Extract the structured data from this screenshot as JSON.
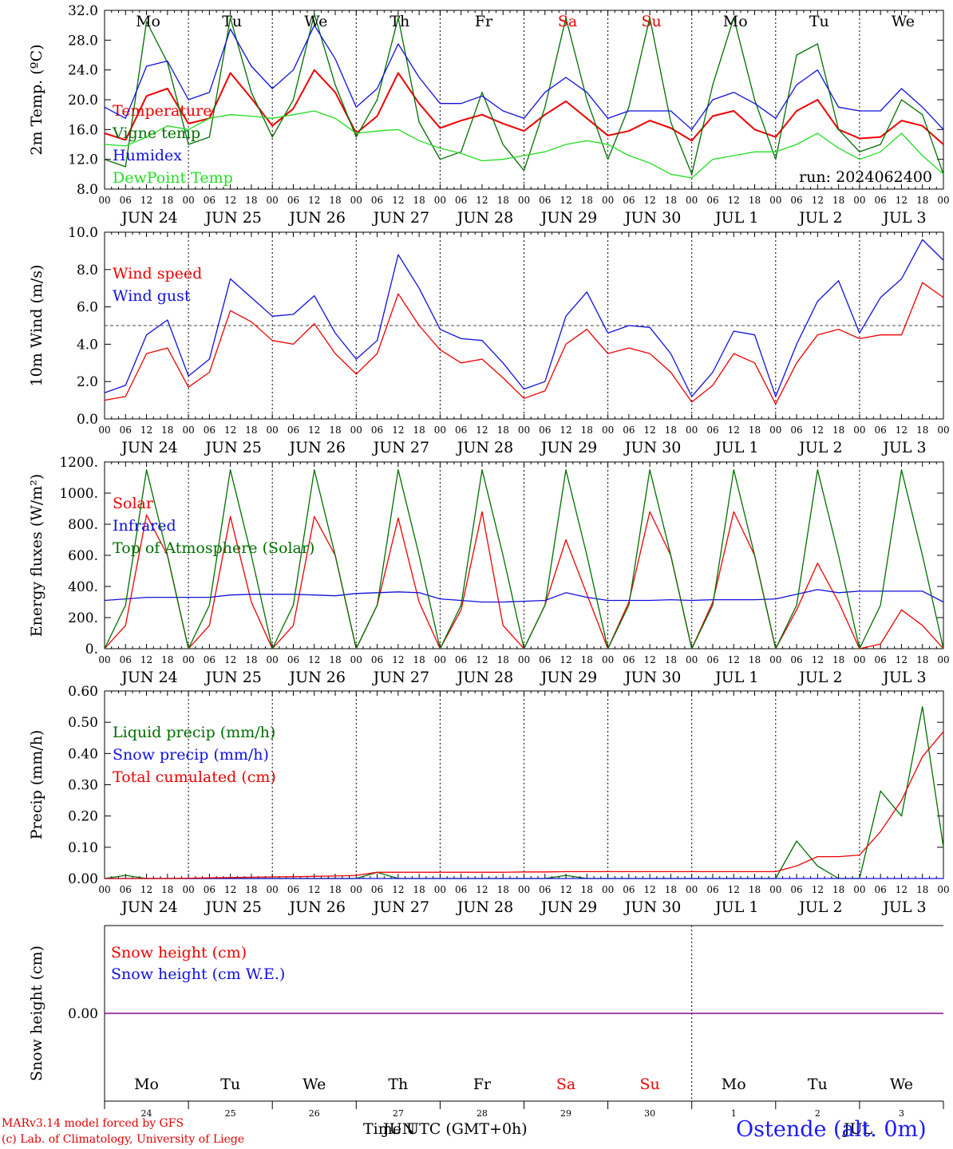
{
  "meta": {
    "run_label": "run: 2024062400",
    "credit_line1": "MARv3.14 model forced by GFS",
    "credit_line2": "(c) Lab. of Climatology, University of Liege",
    "x_axis_title": "Time UTC (GMT+0h)",
    "x_axis_month_jun": "JUN",
    "x_axis_month_jul": "JUL",
    "station": "Ostende (alt. 0m)"
  },
  "colors": {
    "red": "#ee0000",
    "green": "#006e00",
    "blue": "#1010dd",
    "lightgreen": "#22dd22",
    "purple": "#800080"
  },
  "days": [
    {
      "abbr": "Mo",
      "date": "JUN 24",
      "num": "24",
      "weekend": false
    },
    {
      "abbr": "Tu",
      "date": "JUN 25",
      "num": "25",
      "weekend": false
    },
    {
      "abbr": "We",
      "date": "JUN 26",
      "num": "26",
      "weekend": false
    },
    {
      "abbr": "Th",
      "date": "JUN 27",
      "num": "27",
      "weekend": false
    },
    {
      "abbr": "Fr",
      "date": "JUN 28",
      "num": "28",
      "weekend": false
    },
    {
      "abbr": "Sa",
      "date": "JUN 29",
      "num": "29",
      "weekend": true
    },
    {
      "abbr": "Su",
      "date": "JUN 30",
      "num": "30",
      "weekend": true
    },
    {
      "abbr": "Mo",
      "date": "JUL  1",
      "num": "1",
      "weekend": false
    },
    {
      "abbr": "Tu",
      "date": "JUL  2",
      "num": "2",
      "weekend": false
    },
    {
      "abbr": "We",
      "date": "JUL  3",
      "num": "3",
      "weekend": false
    }
  ],
  "hour_ticks": [
    "00",
    "06",
    "12",
    "18"
  ],
  "chart_data": [
    {
      "type": "line",
      "ylabel": "2m Temp. (ºC)",
      "ylim": [
        8,
        32
      ],
      "yticks": [
        "8.0",
        "12.0",
        "16.0",
        "20.0",
        "24.0",
        "28.0",
        "32.0"
      ],
      "x_hours": [
        0,
        6,
        12,
        18,
        24,
        30,
        36,
        42,
        48,
        54,
        60,
        66,
        72,
        78,
        84,
        90,
        96,
        102,
        108,
        114,
        120,
        126,
        132,
        138,
        144,
        150,
        156,
        162,
        168,
        174,
        180,
        186,
        192,
        198,
        204,
        210,
        216,
        222,
        228,
        234,
        240
      ],
      "series": [
        {
          "name": "Temperature",
          "color": "red",
          "values": [
            15.5,
            14.6,
            20.5,
            21.5,
            16.8,
            17.5,
            23.6,
            20.2,
            16.5,
            18.8,
            24.0,
            21.0,
            15.5,
            17.8,
            23.6,
            19.5,
            16.2,
            17.2,
            18.0,
            16.8,
            15.8,
            18.0,
            19.8,
            17.5,
            15.2,
            15.8,
            17.2,
            16.2,
            14.5,
            17.8,
            18.5,
            16.0,
            15.0,
            18.5,
            20.0,
            16.0,
            14.8,
            15.0,
            17.2,
            16.5,
            14.0
          ]
        },
        {
          "name": "Vigne temp",
          "color": "green",
          "values": [
            12.0,
            11.0,
            30.5,
            25.0,
            14.0,
            15.0,
            31.0,
            21.0,
            15.0,
            20.0,
            31.5,
            22.0,
            15.0,
            20.0,
            31.0,
            17.0,
            12.0,
            13.0,
            21.0,
            14.0,
            10.5,
            19.0,
            31.0,
            20.0,
            12.0,
            19.0,
            31.0,
            17.0,
            10.0,
            22.0,
            31.0,
            20.0,
            12.0,
            26.0,
            27.5,
            16.0,
            13.0,
            14.0,
            20.0,
            18.0,
            10.0
          ]
        },
        {
          "name": "Humidex",
          "color": "blue",
          "values": [
            19.0,
            17.5,
            24.5,
            25.2,
            20.0,
            21.0,
            29.5,
            24.5,
            21.5,
            24.0,
            30.0,
            25.5,
            19.0,
            21.5,
            27.5,
            23.0,
            19.5,
            19.5,
            20.5,
            18.5,
            17.5,
            21.0,
            23.0,
            21.0,
            17.5,
            18.5,
            18.5,
            18.5,
            16.0,
            20.0,
            21.0,
            19.5,
            17.5,
            22.0,
            24.0,
            19.0,
            18.5,
            18.5,
            21.5,
            19.0,
            16.0
          ]
        },
        {
          "name": "DewPoint Temp",
          "color": "lightgreen",
          "values": [
            14.0,
            13.8,
            15.0,
            16.5,
            16.0,
            17.5,
            18.0,
            17.8,
            17.5,
            18.0,
            18.5,
            17.5,
            15.5,
            15.8,
            16.0,
            14.5,
            13.5,
            12.8,
            11.8,
            12.0,
            12.5,
            13.0,
            14.0,
            14.5,
            14.0,
            12.5,
            11.5,
            10.0,
            9.5,
            12.0,
            12.5,
            13.0,
            13.0,
            14.0,
            15.5,
            13.5,
            12.0,
            13.0,
            15.5,
            12.5,
            10.0
          ]
        }
      ]
    },
    {
      "type": "line",
      "ylabel": "10m Wind (m/s)",
      "ylim": [
        0,
        10
      ],
      "yticks": [
        "0.0",
        "2.0",
        "4.0",
        "6.0",
        "8.0",
        "10.0"
      ],
      "reference_line": 5.0,
      "x_hours": [
        0,
        6,
        12,
        18,
        24,
        30,
        36,
        42,
        48,
        54,
        60,
        66,
        72,
        78,
        84,
        90,
        96,
        102,
        108,
        114,
        120,
        126,
        132,
        138,
        144,
        150,
        156,
        162,
        168,
        174,
        180,
        186,
        192,
        198,
        204,
        210,
        216,
        222,
        228,
        234,
        240
      ],
      "series": [
        {
          "name": "Wind speed",
          "color": "red",
          "values": [
            1.0,
            1.2,
            3.5,
            3.8,
            1.7,
            2.5,
            5.8,
            5.2,
            4.2,
            4.0,
            5.1,
            3.5,
            2.4,
            3.5,
            6.7,
            5.0,
            3.7,
            3.0,
            3.2,
            2.2,
            1.1,
            1.5,
            4.0,
            4.8,
            3.5,
            3.8,
            3.5,
            2.5,
            0.9,
            1.8,
            3.5,
            3.0,
            0.8,
            3.0,
            4.5,
            4.8,
            4.3,
            4.5,
            4.5,
            7.3,
            6.5
          ]
        },
        {
          "name": "Wind gust",
          "color": "blue",
          "values": [
            1.4,
            1.8,
            4.5,
            5.3,
            2.3,
            3.2,
            7.5,
            6.5,
            5.5,
            5.6,
            6.6,
            4.6,
            3.2,
            4.2,
            8.8,
            7.0,
            4.8,
            4.3,
            4.2,
            3.0,
            1.6,
            2.0,
            5.5,
            6.8,
            4.6,
            5.0,
            4.9,
            3.5,
            1.2,
            2.5,
            4.7,
            4.5,
            1.2,
            4.0,
            6.3,
            7.4,
            4.6,
            6.5,
            7.5,
            9.6,
            8.5
          ]
        }
      ]
    },
    {
      "type": "line",
      "ylabel": "Energy fluxes (W/m²)",
      "ylim": [
        0,
        1200
      ],
      "yticks": [
        "0.",
        "200.",
        "400.",
        "600.",
        "800.",
        "1000.",
        "1200."
      ],
      "x_hours": [
        0,
        6,
        12,
        18,
        24,
        30,
        36,
        42,
        48,
        54,
        60,
        66,
        72,
        78,
        84,
        90,
        96,
        102,
        108,
        114,
        120,
        126,
        132,
        138,
        144,
        150,
        156,
        162,
        168,
        174,
        180,
        186,
        192,
        198,
        204,
        210,
        216,
        222,
        228,
        234,
        240
      ],
      "series": [
        {
          "name": "Solar",
          "color": "red",
          "values": [
            0,
            150,
            860,
            600,
            0,
            150,
            850,
            300,
            0,
            150,
            850,
            600,
            0,
            280,
            840,
            300,
            0,
            250,
            880,
            150,
            0,
            280,
            700,
            350,
            0,
            300,
            880,
            600,
            0,
            300,
            880,
            600,
            0,
            250,
            550,
            300,
            0,
            30,
            250,
            150,
            0
          ]
        },
        {
          "name": "Infrared",
          "color": "blue",
          "values": [
            310,
            320,
            330,
            330,
            330,
            330,
            345,
            350,
            350,
            350,
            345,
            340,
            355,
            360,
            365,
            360,
            320,
            310,
            300,
            300,
            305,
            310,
            360,
            330,
            310,
            310,
            310,
            315,
            310,
            315,
            315,
            315,
            320,
            350,
            380,
            360,
            370,
            370,
            370,
            370,
            300
          ]
        },
        {
          "name": "Top of Atmosphere (Solar)",
          "color": "green",
          "values": [
            0,
            280,
            1150,
            600,
            0,
            280,
            1150,
            600,
            0,
            280,
            1150,
            600,
            0,
            280,
            1150,
            600,
            0,
            280,
            1150,
            600,
            0,
            280,
            1150,
            600,
            0,
            280,
            1150,
            600,
            0,
            280,
            1150,
            600,
            0,
            280,
            1150,
            600,
            0,
            280,
            1150,
            600,
            0
          ]
        }
      ]
    },
    {
      "type": "line",
      "ylabel": "Precip (mm/h)",
      "ylim": [
        0,
        0.6
      ],
      "yticks": [
        "0.00",
        "0.10",
        "0.20",
        "0.30",
        "0.40",
        "0.50",
        "0.60"
      ],
      "x_hours": [
        0,
        6,
        12,
        18,
        24,
        30,
        36,
        42,
        48,
        54,
        60,
        66,
        72,
        78,
        84,
        90,
        96,
        102,
        108,
        114,
        120,
        126,
        132,
        138,
        144,
        150,
        156,
        162,
        168,
        174,
        180,
        186,
        192,
        198,
        204,
        210,
        216,
        222,
        228,
        234,
        240
      ],
      "series": [
        {
          "name": "Liquid precip (mm/h)",
          "color": "green",
          "values": [
            0,
            0.01,
            0,
            0,
            0,
            0,
            0,
            0,
            0,
            0,
            0,
            0,
            0,
            0.02,
            0,
            0,
            0,
            0,
            0,
            0,
            0,
            0,
            0.01,
            0,
            0,
            0,
            0,
            0,
            0,
            0,
            0,
            0,
            0,
            0.12,
            0.04,
            0,
            0,
            0.28,
            0.2,
            0.55,
            0.1
          ]
        },
        {
          "name": "Snow precip (mm/h)",
          "color": "blue",
          "values": [
            0,
            0,
            0,
            0,
            0,
            0,
            0,
            0,
            0,
            0,
            0,
            0,
            0,
            0,
            0,
            0,
            0,
            0,
            0,
            0,
            0,
            0,
            0,
            0,
            0,
            0,
            0,
            0,
            0,
            0,
            0,
            0,
            0,
            0,
            0,
            0,
            0,
            0,
            0,
            0,
            0
          ]
        },
        {
          "name": "Total cumulated (cm)",
          "color": "red",
          "values": [
            0,
            0,
            0,
            0,
            0.001,
            0.002,
            0.003,
            0.004,
            0.005,
            0.006,
            0.007,
            0.008,
            0.01,
            0.02,
            0.02,
            0.02,
            0.02,
            0.02,
            0.02,
            0.02,
            0.021,
            0.021,
            0.022,
            0.022,
            0.022,
            0.022,
            0.022,
            0.022,
            0.022,
            0.022,
            0.022,
            0.022,
            0.022,
            0.04,
            0.07,
            0.07,
            0.075,
            0.15,
            0.25,
            0.39,
            0.47
          ]
        }
      ]
    },
    {
      "type": "line",
      "ylabel": "Snow height (cm)",
      "ylim": [
        -1,
        1
      ],
      "yticks": [
        "0.00"
      ],
      "x_hours": [
        0,
        240
      ],
      "series": [
        {
          "name": "Snow height (cm)",
          "color": "red",
          "values": [
            0,
            0
          ]
        },
        {
          "name": "Snow height (cm W.E.)",
          "color": "blue",
          "values": [
            0,
            0
          ]
        }
      ]
    }
  ]
}
